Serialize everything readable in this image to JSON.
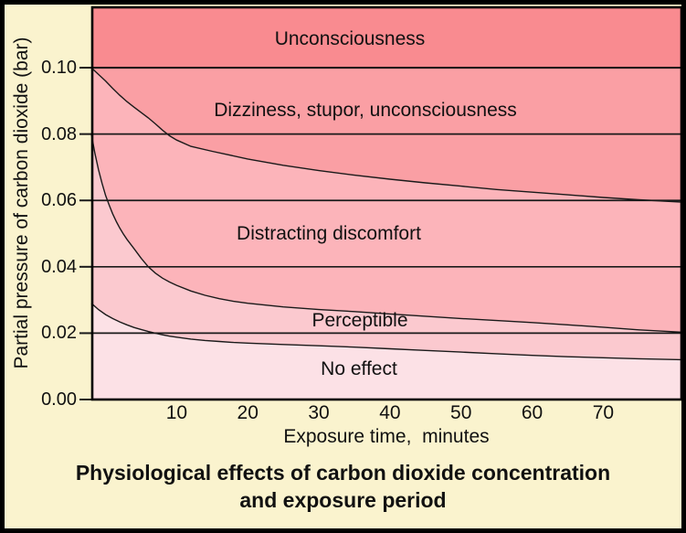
{
  "chart_data": {
    "type": "area",
    "title": "Physiological effects of carbon dioxide concentration and exposure period",
    "xlabel": "Exposure time,  minutes",
    "ylabel": "Partial pressure of carbon dioxide (bar)",
    "xlim": [
      -2,
      81
    ],
    "ylim": [
      0,
      0.1182
    ],
    "grid": "horizontal black lines at each y tick, drawn across full plot width",
    "legend": "none - regions labeled inline",
    "x_ticks": [
      {
        "label": "10",
        "value": 10
      },
      {
        "label": "20",
        "value": 20
      },
      {
        "label": "30",
        "value": 30
      },
      {
        "label": "40",
        "value": 40
      },
      {
        "label": "50",
        "value": 50
      },
      {
        "label": "60",
        "value": 60
      },
      {
        "label": "70",
        "value": 70
      }
    ],
    "y_ticks": [
      {
        "label": "0.00",
        "value": 0.0
      },
      {
        "label": "0.02",
        "value": 0.02
      },
      {
        "label": "0.04",
        "value": 0.04
      },
      {
        "label": "0.06",
        "value": 0.06
      },
      {
        "label": "0.08",
        "value": 0.08
      },
      {
        "label": "0.10",
        "value": 0.1
      }
    ],
    "gridline_values": [
      0.02,
      0.04,
      0.06,
      0.08,
      0.1
    ],
    "regions": [
      {
        "label": "Unconsciousness",
        "color": "#F98B90",
        "upper": "top",
        "lower": "p010"
      },
      {
        "label": "Dizziness, stupor, unconsciousness",
        "color": "#FA9FA4",
        "upper": "p010",
        "lower": "curveA"
      },
      {
        "label": "Distracting discomfort",
        "color": "#FCB4BA",
        "upper": "curveA",
        "lower": "curveB"
      },
      {
        "label": "Perceptible",
        "color": "#FBC9CF",
        "upper": "curveB",
        "lower": "curveC"
      },
      {
        "label": "No effect",
        "color": "#FCE1E6",
        "upper": "curveC",
        "lower": "bottom"
      }
    ],
    "curves": {
      "curveA": [
        [
          -2,
          0.1
        ],
        [
          0,
          0.096
        ],
        [
          1,
          0.0938
        ],
        [
          2,
          0.0917
        ],
        [
          3,
          0.0898
        ],
        [
          4,
          0.0881
        ],
        [
          5,
          0.0865
        ],
        [
          6,
          0.0849
        ],
        [
          7,
          0.0831
        ],
        [
          8,
          0.0812
        ],
        [
          9,
          0.0795
        ],
        [
          10,
          0.0782
        ],
        [
          12,
          0.0763
        ],
        [
          15,
          0.0748
        ],
        [
          20,
          0.0725
        ],
        [
          25,
          0.0706
        ],
        [
          30,
          0.069
        ],
        [
          35,
          0.0676
        ],
        [
          40,
          0.0664
        ],
        [
          45,
          0.0653
        ],
        [
          50,
          0.0643
        ],
        [
          55,
          0.0633
        ],
        [
          60,
          0.0625
        ],
        [
          65,
          0.0617
        ],
        [
          70,
          0.0609
        ],
        [
          75,
          0.0602
        ],
        [
          81,
          0.0595
        ]
      ],
      "curveB": [
        [
          -2,
          0.08
        ],
        [
          -1.5,
          0.0742
        ],
        [
          -1,
          0.0693
        ],
        [
          -0.5,
          0.0652
        ],
        [
          0,
          0.0615
        ],
        [
          0.5,
          0.0586
        ],
        [
          1,
          0.056
        ],
        [
          1.5,
          0.0537
        ],
        [
          2,
          0.0517
        ],
        [
          2.5,
          0.0499
        ],
        [
          3,
          0.0483
        ],
        [
          4,
          0.0455
        ],
        [
          5,
          0.0426
        ],
        [
          6,
          0.04
        ],
        [
          7,
          0.0381
        ],
        [
          8,
          0.0366
        ],
        [
          9,
          0.0354
        ],
        [
          10,
          0.0344
        ],
        [
          12,
          0.0327
        ],
        [
          14,
          0.0314
        ],
        [
          16,
          0.0304
        ],
        [
          18,
          0.0296
        ],
        [
          20,
          0.029
        ],
        [
          25,
          0.0279
        ],
        [
          30,
          0.0271
        ],
        [
          35,
          0.0265
        ],
        [
          40,
          0.0258
        ],
        [
          45,
          0.0251
        ],
        [
          50,
          0.0244
        ],
        [
          55,
          0.0238
        ],
        [
          60,
          0.0232
        ],
        [
          65,
          0.0225
        ],
        [
          70,
          0.0218
        ],
        [
          75,
          0.021
        ],
        [
          81,
          0.0203
        ]
      ],
      "curveC": [
        [
          -2,
          0.029
        ],
        [
          -1,
          0.0271
        ],
        [
          0,
          0.0256
        ],
        [
          1,
          0.0244
        ],
        [
          2,
          0.0234
        ],
        [
          3,
          0.0225
        ],
        [
          4,
          0.0217
        ],
        [
          5,
          0.0211
        ],
        [
          6,
          0.0205
        ],
        [
          7,
          0.02
        ],
        [
          8,
          0.0195
        ],
        [
          9,
          0.0191
        ],
        [
          10,
          0.0188
        ],
        [
          12,
          0.0182
        ],
        [
          14,
          0.0178
        ],
        [
          16,
          0.0175
        ],
        [
          18,
          0.0172
        ],
        [
          20,
          0.017
        ],
        [
          25,
          0.0166
        ],
        [
          30,
          0.0162
        ],
        [
          35,
          0.0158
        ],
        [
          40,
          0.0153
        ],
        [
          45,
          0.0148
        ],
        [
          50,
          0.0143
        ],
        [
          55,
          0.0138
        ],
        [
          60,
          0.0133
        ],
        [
          65,
          0.0129
        ],
        [
          70,
          0.0126
        ],
        [
          75,
          0.0123
        ],
        [
          81,
          0.012
        ]
      ],
      "p010_boundary": 0.1
    },
    "colors": {
      "background": "#FAF3CE",
      "line": "#1a1a1a",
      "border": "#000000",
      "text": "#111111"
    }
  },
  "caption": {
    "line1": "Physiological effects of carbon dioxide concentration",
    "line2": "and exposure period"
  }
}
